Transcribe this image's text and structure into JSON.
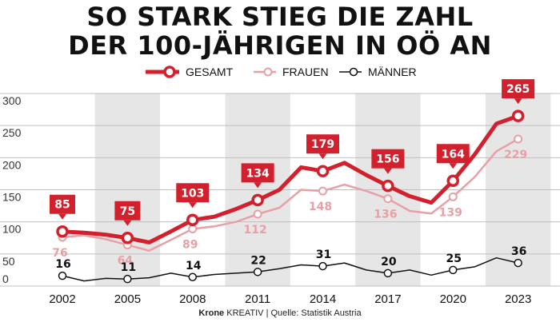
{
  "title_line1": "SO STARK STIEG DIE ZAHL",
  "title_line2": "DER 100-JÄHRIGEN IN OÖ AN",
  "legend": {
    "gesamt": "GESAMT",
    "frauen": "FRAUEN",
    "maenner": "MÄNNER"
  },
  "footer": {
    "brand": "Krone",
    "brand_suffix": "KREATIV",
    "source": "Quelle: Statistik Austria"
  },
  "colors": {
    "gesamt": "#d3202d",
    "frauen": "#e8a0a6",
    "maenner": "#111111",
    "band": "#e6e6e6"
  },
  "chart_data": {
    "type": "line",
    "x_ticks": [
      2002,
      2005,
      2008,
      2011,
      2014,
      2017,
      2020,
      2023
    ],
    "y_ticks": [
      0,
      50,
      100,
      150,
      200,
      250,
      300
    ],
    "ylim": [
      0,
      300
    ],
    "xlim": [
      2000,
      2024
    ],
    "grid": true,
    "legend_position": "top-center",
    "series": [
      {
        "name": "GESAMT",
        "x": [
          2002,
          2003,
          2004,
          2005,
          2006,
          2007,
          2008,
          2009,
          2010,
          2011,
          2012,
          2013,
          2014,
          2015,
          2016,
          2017,
          2018,
          2019,
          2020,
          2021,
          2022,
          2023
        ],
        "y": [
          85,
          83,
          80,
          75,
          68,
          85,
          103,
          108,
          120,
          134,
          150,
          185,
          179,
          192,
          173,
          156,
          140,
          130,
          164,
          205,
          253,
          265
        ],
        "labels": [
          {
            "x": 2002,
            "text": "85"
          },
          {
            "x": 2005,
            "text": "75"
          },
          {
            "x": 2008,
            "text": "103"
          },
          {
            "x": 2011,
            "text": "134"
          },
          {
            "x": 2014,
            "text": "179"
          },
          {
            "x": 2017,
            "text": "156"
          },
          {
            "x": 2020,
            "text": "164"
          },
          {
            "x": 2023,
            "text": "265"
          }
        ]
      },
      {
        "name": "FRAUEN",
        "x": [
          2002,
          2003,
          2004,
          2005,
          2006,
          2007,
          2008,
          2009,
          2010,
          2011,
          2012,
          2013,
          2014,
          2015,
          2016,
          2017,
          2018,
          2019,
          2020,
          2021,
          2022,
          2023
        ],
        "y": [
          76,
          79,
          73,
          64,
          55,
          72,
          89,
          93,
          100,
          112,
          122,
          150,
          148,
          158,
          148,
          136,
          117,
          113,
          139,
          170,
          210,
          229
        ],
        "labels": [
          {
            "x": 2002,
            "text": "76"
          },
          {
            "x": 2005,
            "text": "64"
          },
          {
            "x": 2008,
            "text": "89"
          },
          {
            "x": 2011,
            "text": "112"
          },
          {
            "x": 2014,
            "text": "148"
          },
          {
            "x": 2017,
            "text": "136"
          },
          {
            "x": 2020,
            "text": "139"
          },
          {
            "x": 2023,
            "text": "229"
          }
        ]
      },
      {
        "name": "MÄNNER",
        "x": [
          2002,
          2003,
          2004,
          2005,
          2006,
          2007,
          2008,
          2009,
          2010,
          2011,
          2012,
          2013,
          2014,
          2015,
          2016,
          2017,
          2018,
          2019,
          2020,
          2021,
          2022,
          2023
        ],
        "y": [
          16,
          8,
          12,
          11,
          13,
          20,
          14,
          18,
          20,
          22,
          27,
          33,
          31,
          36,
          25,
          20,
          25,
          17,
          25,
          30,
          44,
          36
        ],
        "labels": [
          {
            "x": 2002,
            "text": "16"
          },
          {
            "x": 2005,
            "text": "11"
          },
          {
            "x": 2008,
            "text": "14"
          },
          {
            "x": 2011,
            "text": "22"
          },
          {
            "x": 2014,
            "text": "31"
          },
          {
            "x": 2017,
            "text": "20"
          },
          {
            "x": 2020,
            "text": "25"
          },
          {
            "x": 2023,
            "text": "36"
          }
        ]
      }
    ]
  }
}
